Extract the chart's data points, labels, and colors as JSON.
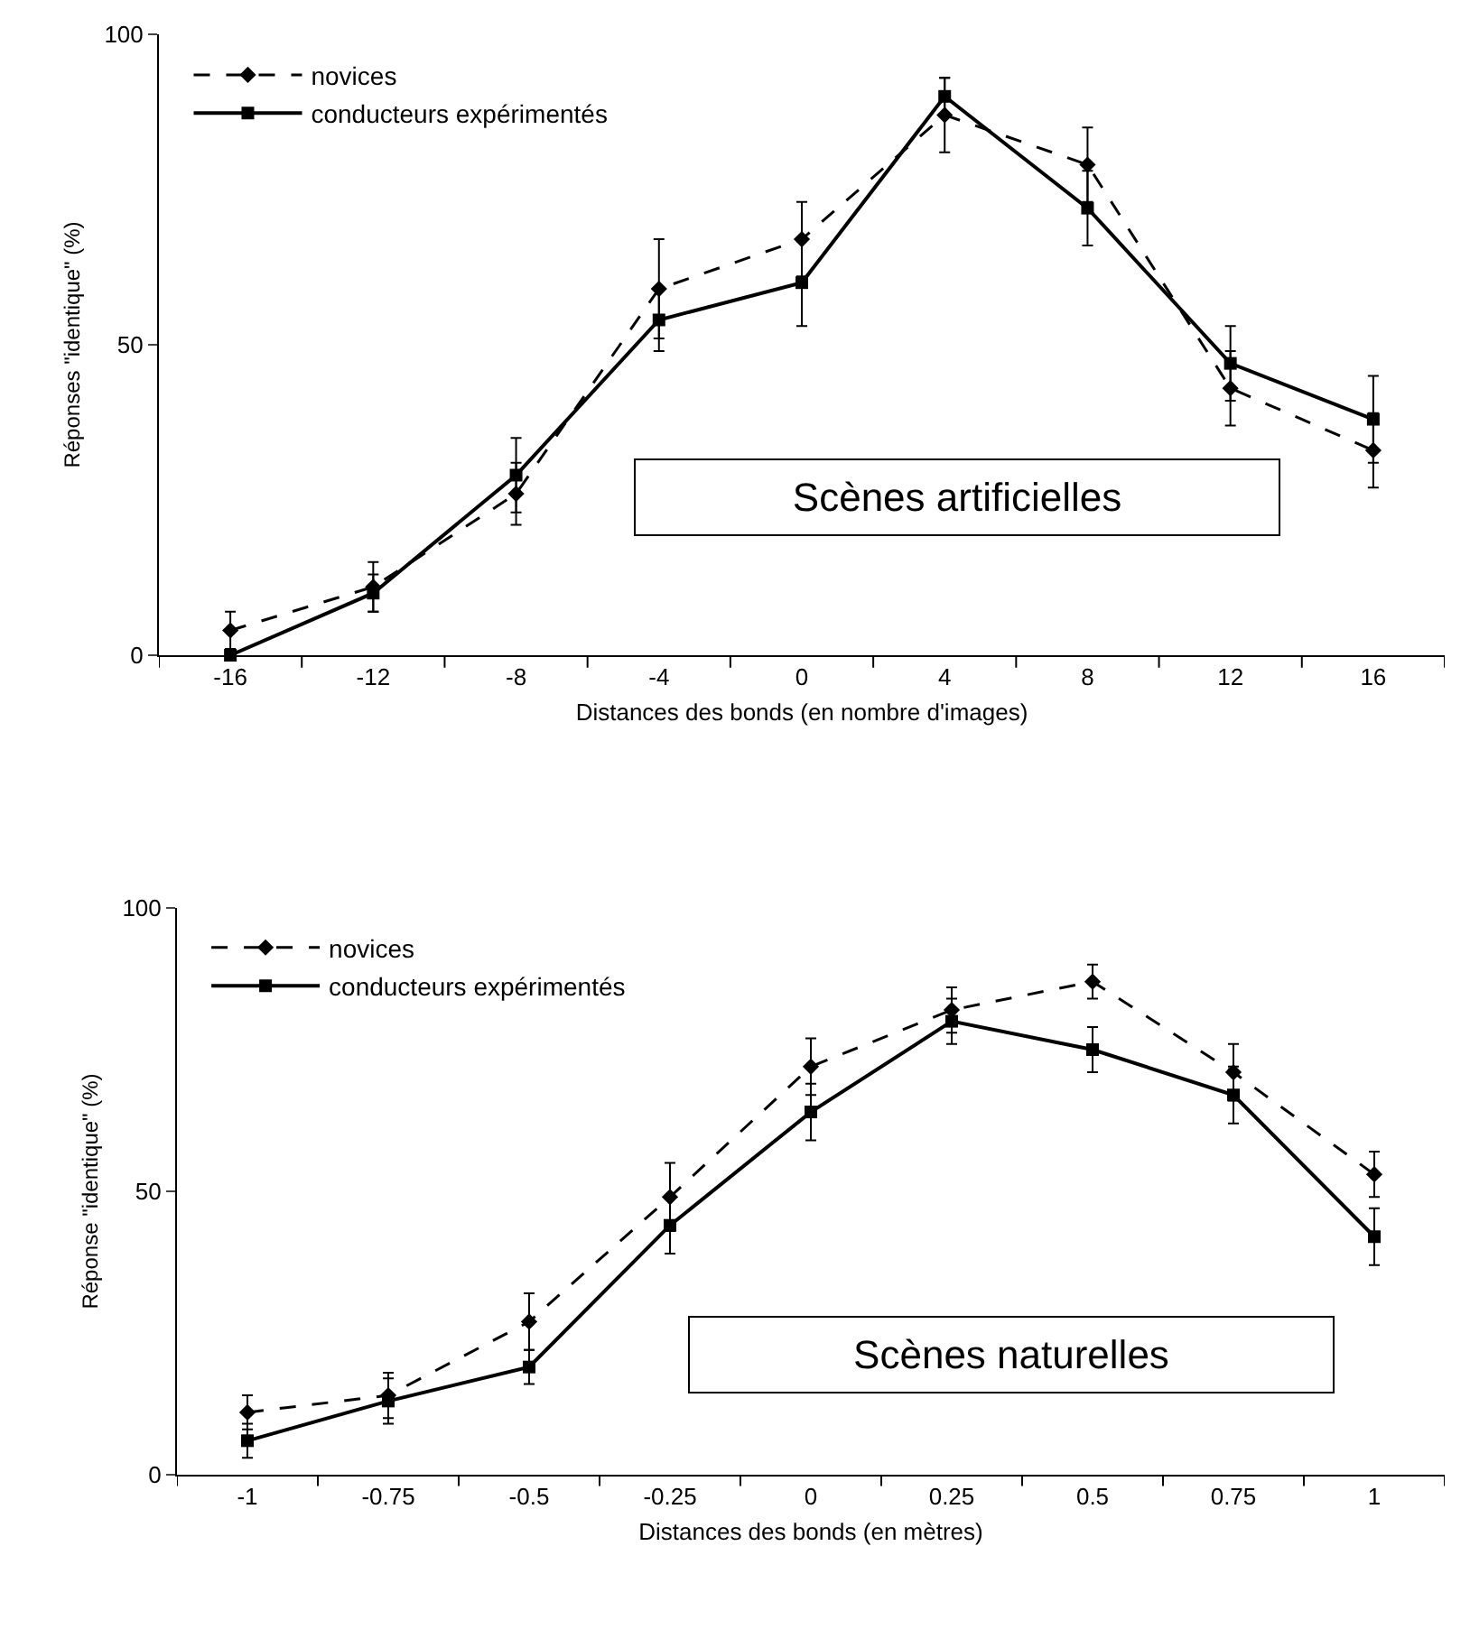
{
  "chart_data": [
    {
      "type": "line",
      "categories": [
        "-16",
        "-12",
        "-8",
        "-4",
        "0",
        "4",
        "8",
        "12",
        "16"
      ],
      "xlabel": "Distances des bonds (en nombre d'images)",
      "ylabel": "Réponses \"identique\" (%)",
      "ylim": [
        0,
        100
      ],
      "yticks": [
        0,
        50,
        100
      ],
      "legend": "top left",
      "annotations": [
        "Scènes artificielles"
      ],
      "series": [
        {
          "name": "novices",
          "color": "#000000",
          "line_style": "dashed",
          "marker": "diamond",
          "values": [
            4,
            11,
            26,
            59,
            67,
            87,
            79,
            43,
            33
          ],
          "errors": [
            3,
            4,
            5,
            8,
            6,
            6,
            6,
            6,
            6
          ]
        },
        {
          "name": "conducteurs expérimentés",
          "color": "#000000",
          "line_style": "solid",
          "marker": "square",
          "values": [
            0,
            10,
            29,
            54,
            60,
            90,
            72,
            47,
            38
          ],
          "errors": [
            null,
            3,
            6,
            5,
            7,
            3,
            6,
            6,
            7
          ]
        }
      ]
    },
    {
      "type": "line",
      "categories": [
        "-1",
        "-0.75",
        "-0.5",
        "-0.25",
        "0",
        "0.25",
        "0.5",
        "0.75",
        "1"
      ],
      "xlabel": "Distances des bonds (en mètres)",
      "ylabel": "Réponse \"identique\" (%)",
      "ylim": [
        0,
        100
      ],
      "yticks": [
        0,
        50,
        100
      ],
      "legend": "top left",
      "annotations": [
        "Scènes naturelles"
      ],
      "series": [
        {
          "name": "novices",
          "color": "#000000",
          "line_style": "dashed",
          "marker": "diamond",
          "values": [
            11,
            14,
            27,
            49,
            72,
            82,
            87,
            71,
            53
          ],
          "errors": [
            3,
            4,
            5,
            6,
            5,
            4,
            3,
            5,
            4
          ]
        },
        {
          "name": "conducteurs expérimentés",
          "color": "#000000",
          "line_style": "solid",
          "marker": "square",
          "values": [
            6,
            13,
            19,
            44,
            64,
            80,
            75,
            67,
            42
          ],
          "errors": [
            3,
            4,
            3,
            5,
            5,
            4,
            4,
            5,
            5
          ]
        }
      ]
    }
  ]
}
